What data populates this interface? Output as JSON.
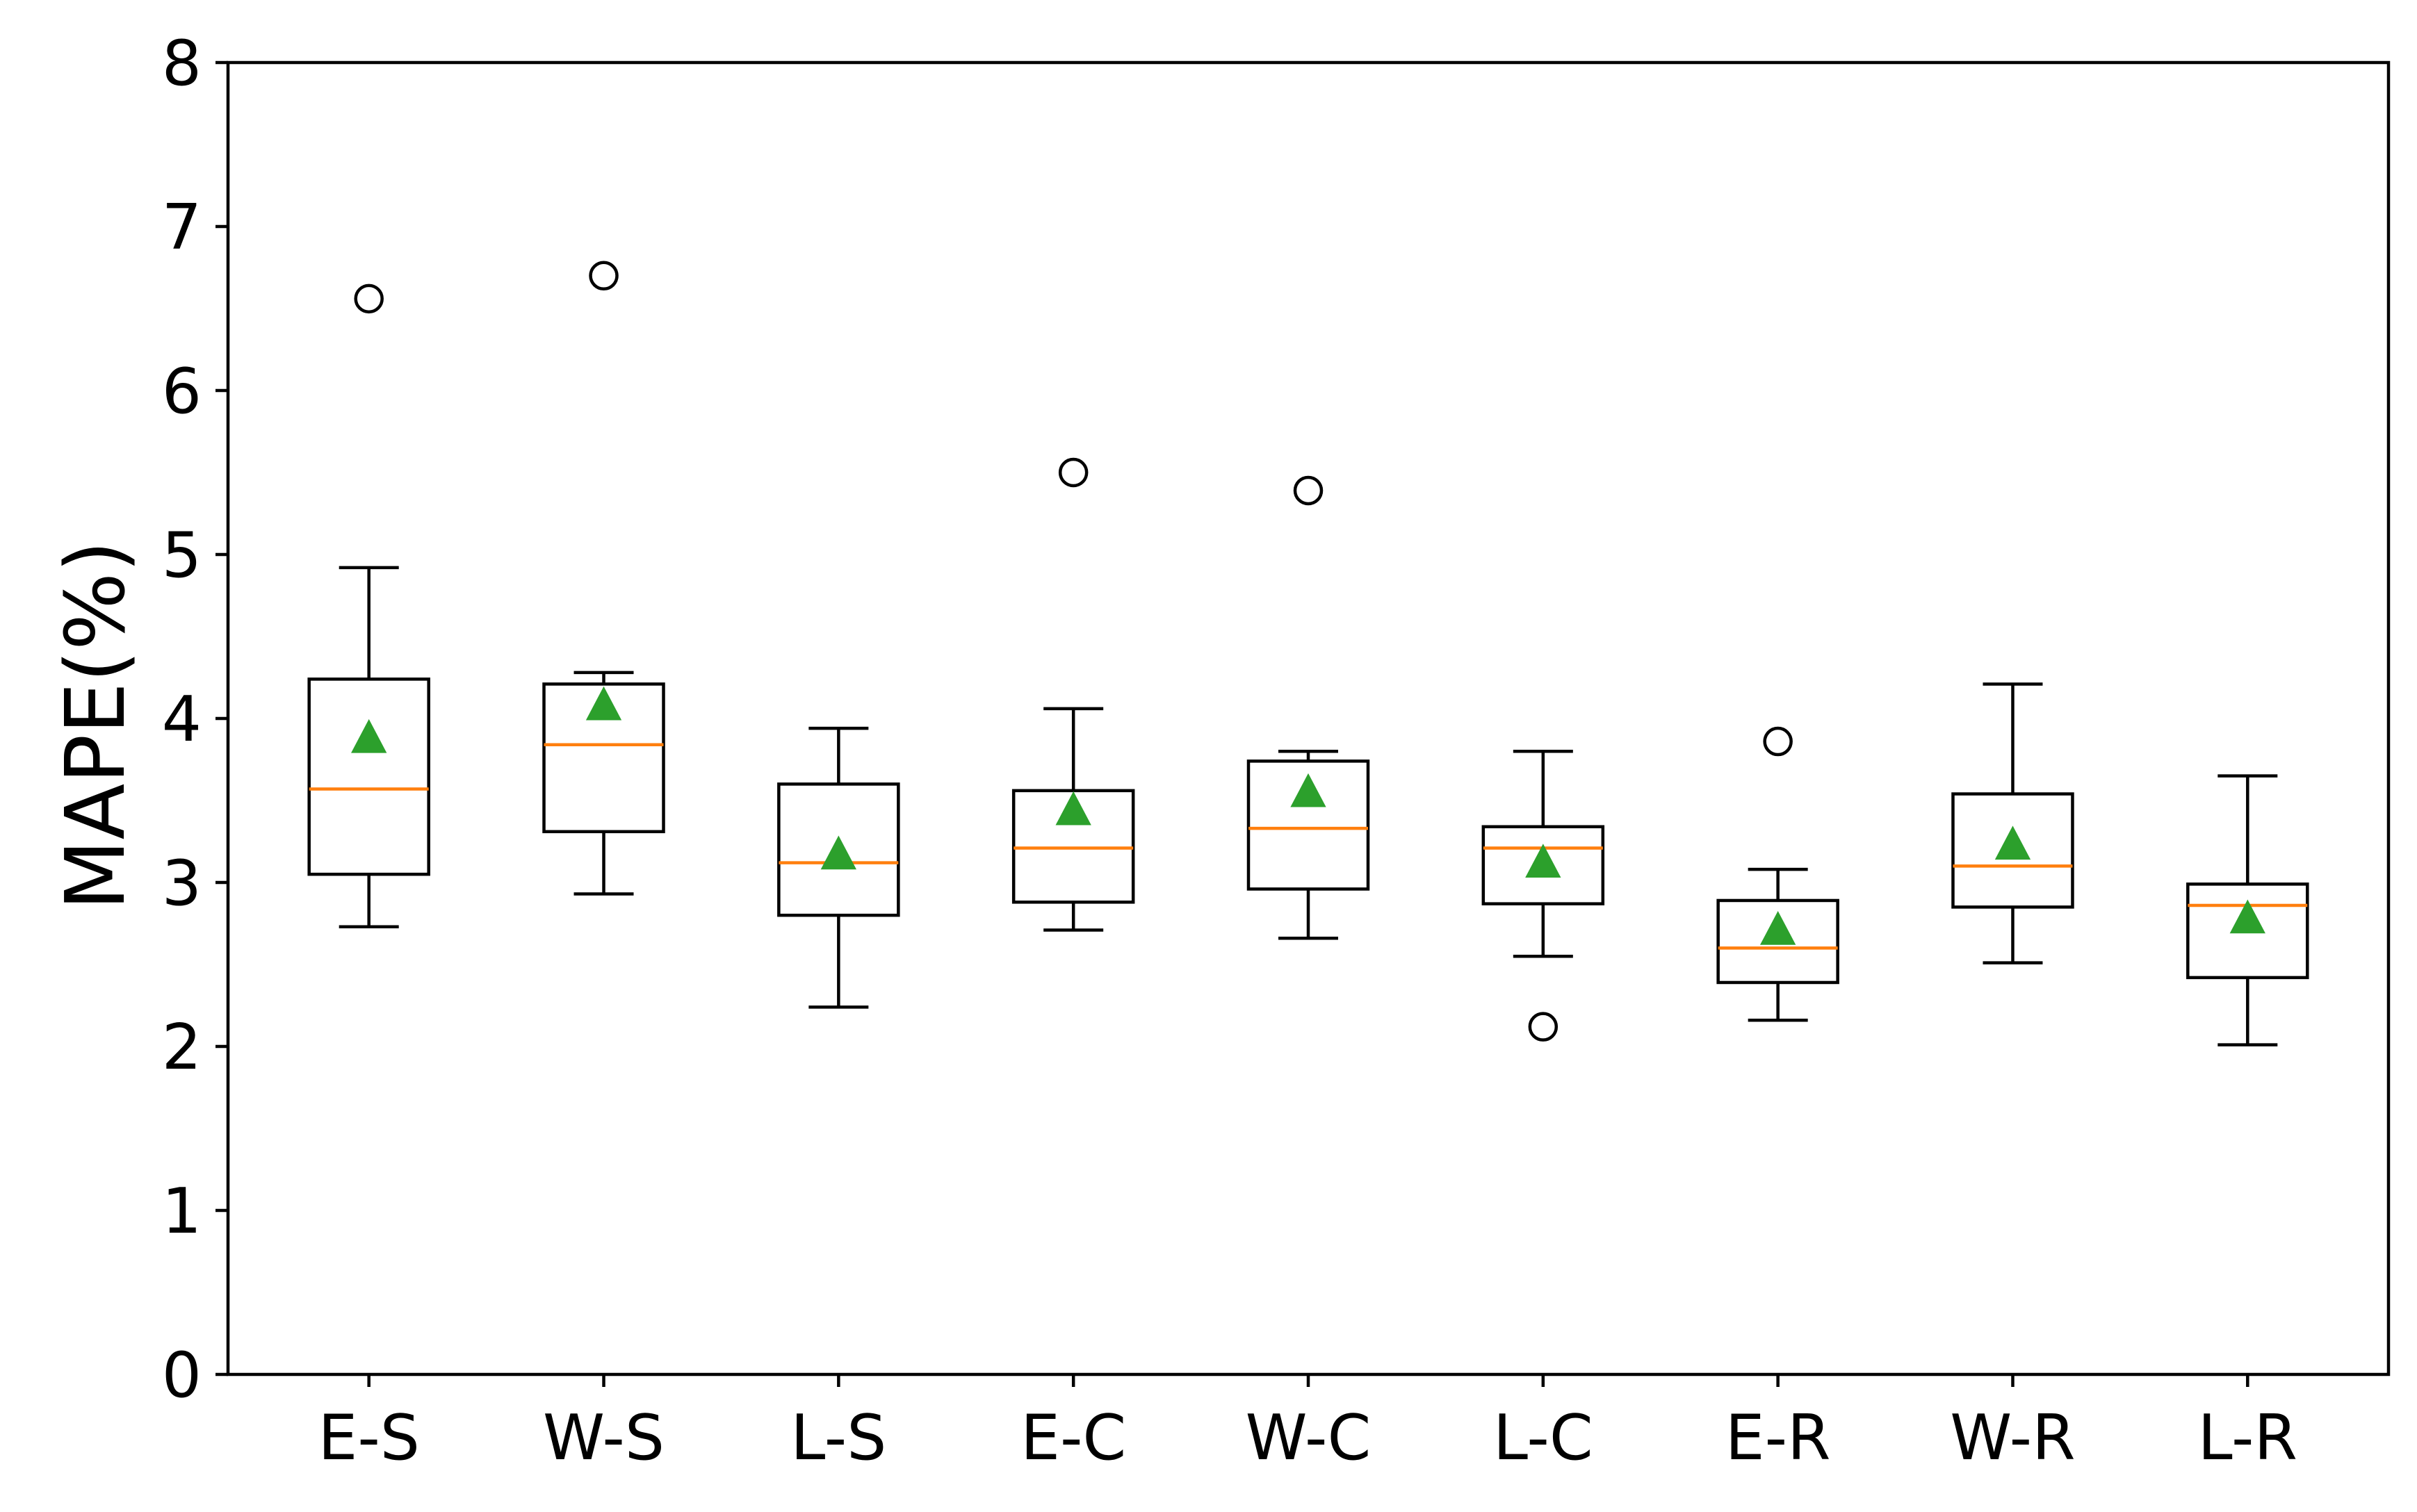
{
  "chart_data": {
    "type": "box",
    "title": "",
    "xlabel": "",
    "ylabel": "MAPE(%)",
    "ylim": [
      0,
      8
    ],
    "yticks": [
      "0",
      "1",
      "2",
      "3",
      "4",
      "5",
      "6",
      "7",
      "8"
    ],
    "grid": false,
    "legend": false,
    "categories": [
      "E-S",
      "W-S",
      "L-S",
      "E-C",
      "W-C",
      "L-C",
      "E-R",
      "W-R",
      "L-R"
    ],
    "boxes": [
      {
        "label": "E-S",
        "whisker_low": 2.73,
        "q1": 3.05,
        "median": 3.57,
        "q3": 4.24,
        "whisker_high": 4.92,
        "mean": 3.87,
        "outliers": [
          6.56
        ]
      },
      {
        "label": "W-S",
        "whisker_low": 2.93,
        "q1": 3.31,
        "median": 3.84,
        "q3": 4.21,
        "whisker_high": 4.28,
        "mean": 4.07,
        "outliers": [
          6.7
        ]
      },
      {
        "label": "L-S",
        "whisker_low": 2.24,
        "q1": 2.8,
        "median": 3.12,
        "q3": 3.6,
        "whisker_high": 3.94,
        "mean": 3.16,
        "outliers": []
      },
      {
        "label": "E-C",
        "whisker_low": 2.71,
        "q1": 2.88,
        "median": 3.21,
        "q3": 3.56,
        "whisker_high": 4.06,
        "mean": 3.43,
        "outliers": [
          5.5
        ]
      },
      {
        "label": "W-C",
        "whisker_low": 2.66,
        "q1": 2.96,
        "median": 3.33,
        "q3": 3.74,
        "whisker_high": 3.8,
        "mean": 3.54,
        "outliers": [
          5.39
        ]
      },
      {
        "label": "L-C",
        "whisker_low": 2.55,
        "q1": 2.87,
        "median": 3.21,
        "q3": 3.34,
        "whisker_high": 3.8,
        "mean": 3.11,
        "outliers": [
          2.12
        ]
      },
      {
        "label": "E-R",
        "whisker_low": 2.16,
        "q1": 2.39,
        "median": 2.6,
        "q3": 2.89,
        "whisker_high": 3.08,
        "mean": 2.7,
        "outliers": [
          3.86
        ]
      },
      {
        "label": "W-R",
        "whisker_low": 2.51,
        "q1": 2.85,
        "median": 3.1,
        "q3": 3.54,
        "whisker_high": 4.21,
        "mean": 3.22,
        "outliers": []
      },
      {
        "label": "L-R",
        "whisker_low": 2.01,
        "q1": 2.42,
        "median": 2.86,
        "q3": 2.99,
        "whisker_high": 3.65,
        "mean": 2.77,
        "outliers": []
      }
    ],
    "colors": {
      "box": "#000000",
      "median": "#ff7f0e",
      "mean": "#2ca02c",
      "outlier": "#000000"
    }
  }
}
